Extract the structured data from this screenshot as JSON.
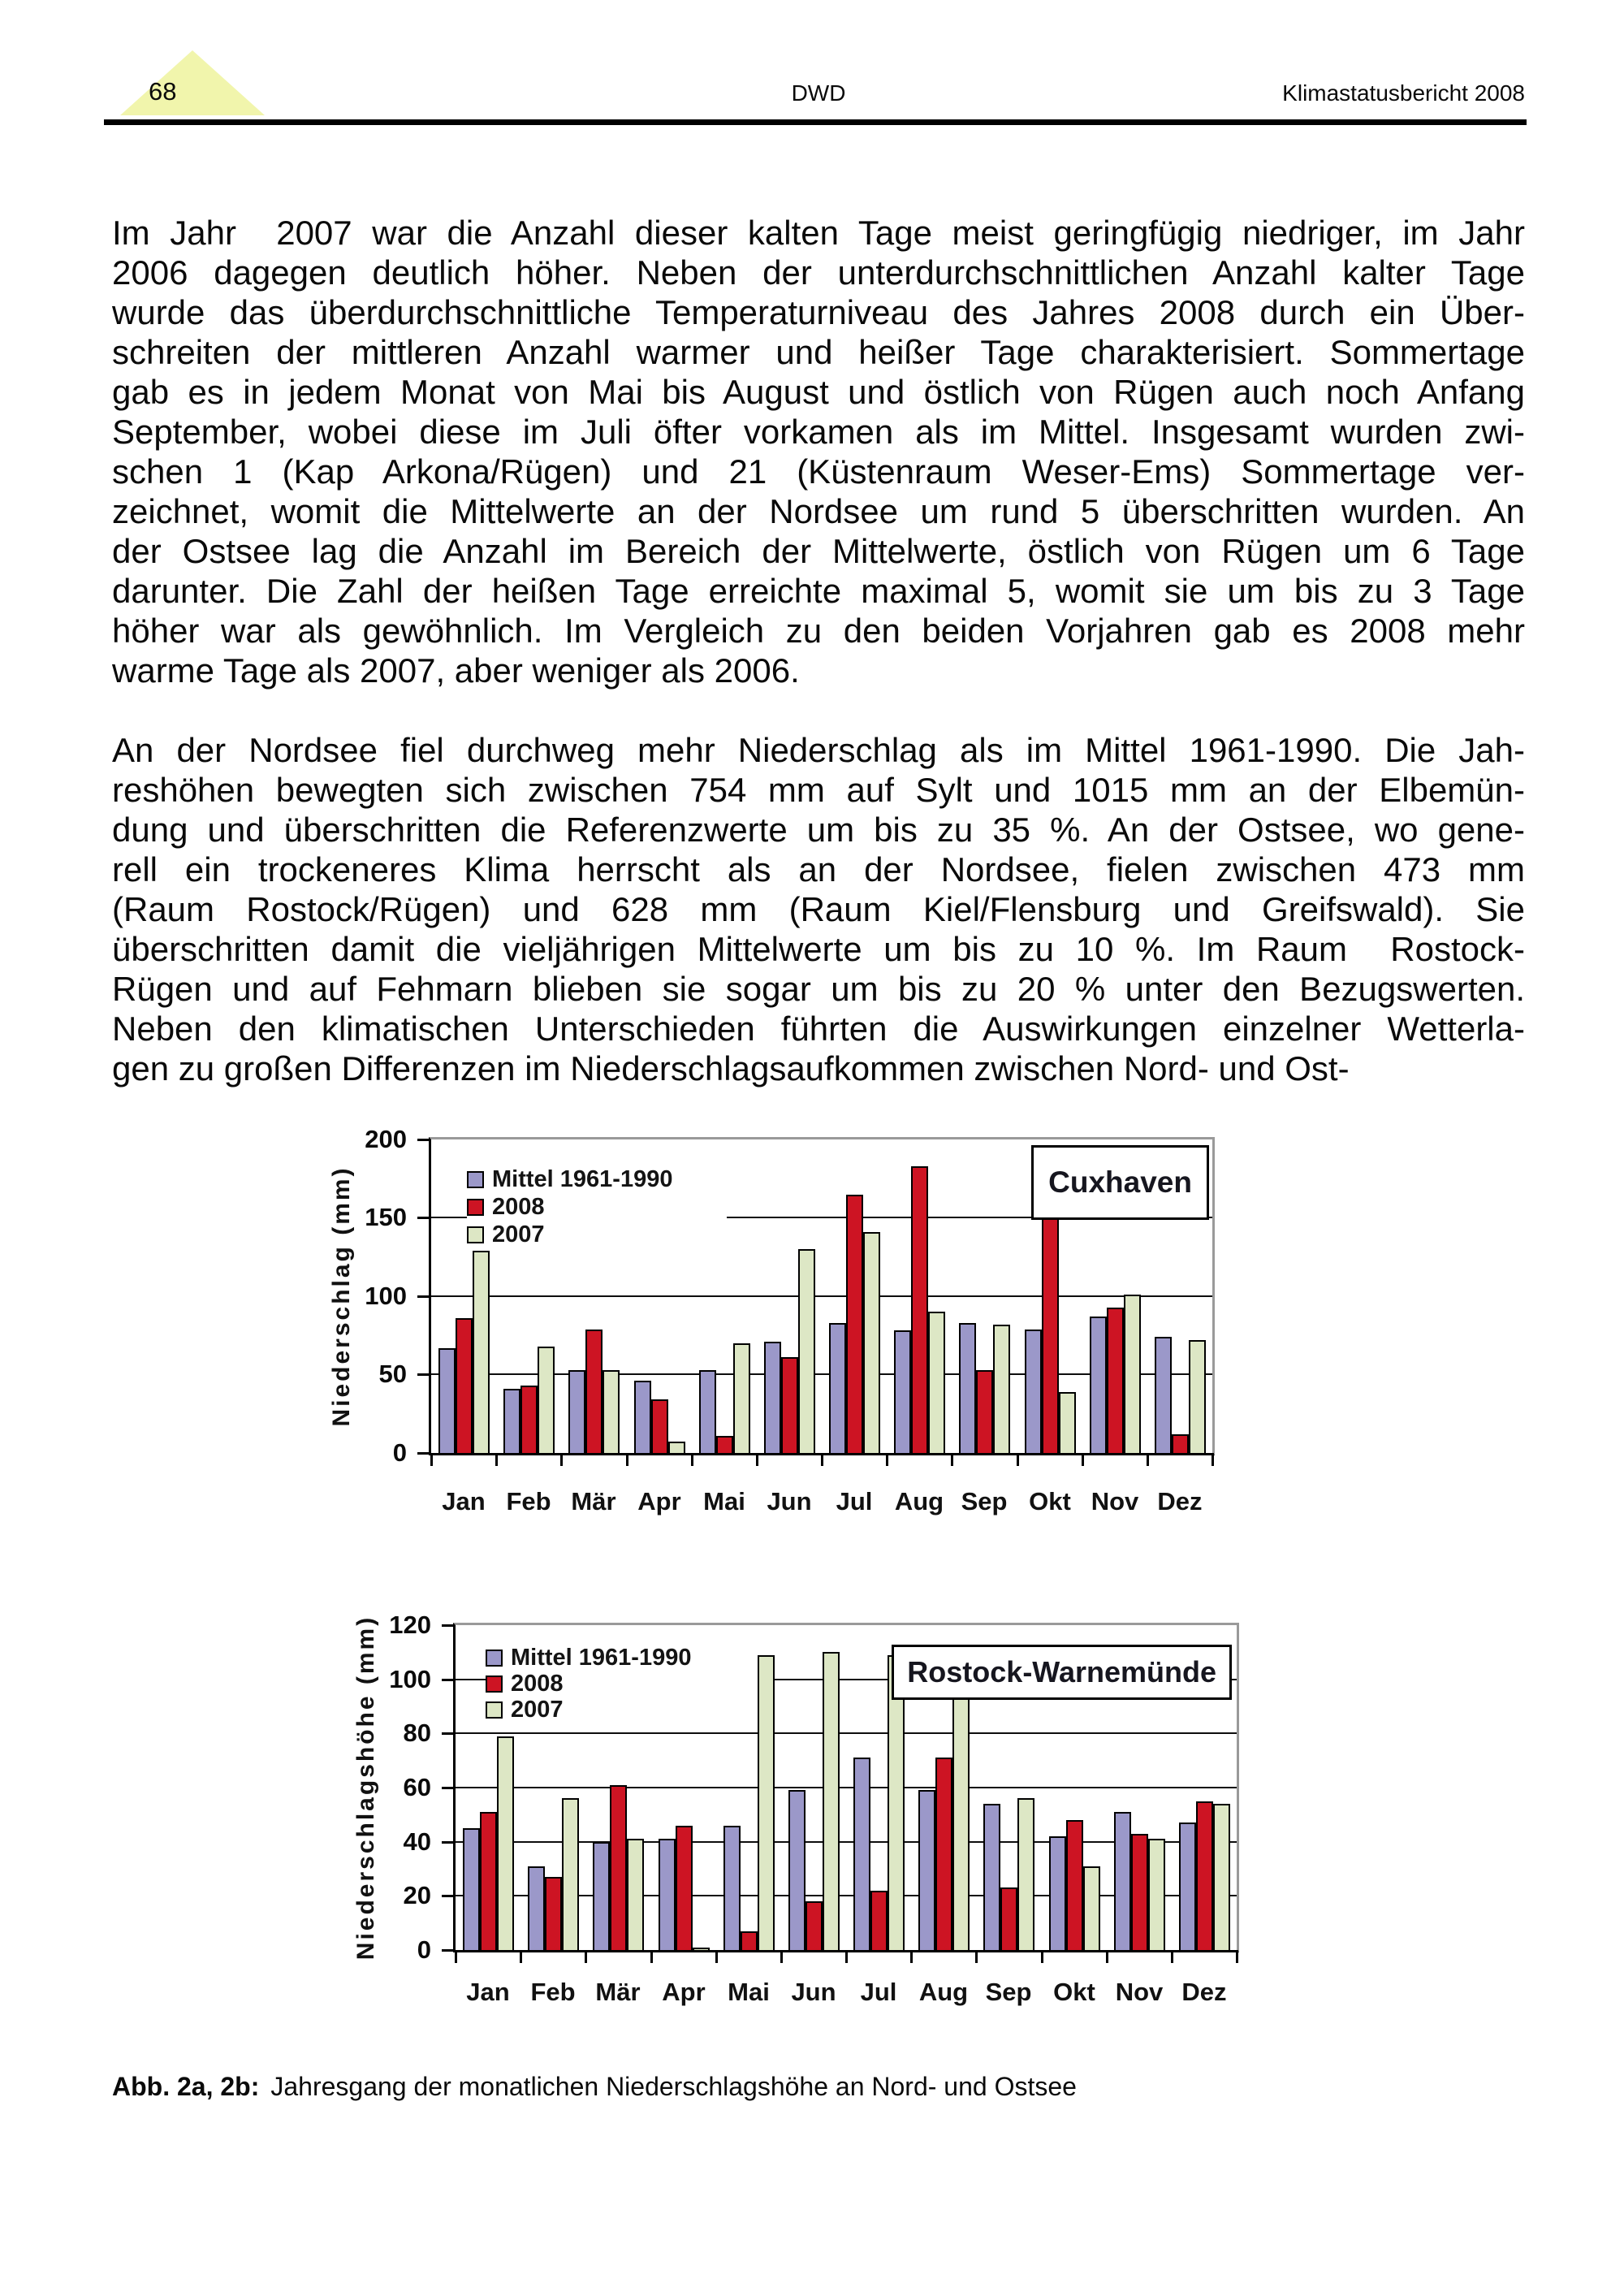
{
  "header": {
    "page_number": "68",
    "center": "DWD",
    "right": "Klimastatusbericht 2008"
  },
  "paragraphs": [
    {
      "lines": [
        "Im Jahr  2007 war die Anzahl dieser kalten Tage meist geringfügig niedriger, im Jahr",
        "2006 dagegen deutlich höher. Neben der unterdurchschnittlichen Anzahl kalter Tage",
        "wurde das überdurchschnittliche Temperaturniveau des Jahres 2008 durch ein Über-",
        "schreiten der mittleren Anzahl warmer und heißer Tage charakterisiert. Sommertage",
        "gab es in jedem Monat von Mai bis August und östlich von Rügen auch noch Anfang",
        "September, wobei diese im Juli öfter vorkamen als im Mittel. Insgesamt wurden zwi-",
        "schen 1 (Kap Arkona/Rügen) und 21 (Küstenraum Weser-Ems) Sommertage ver-",
        "zeichnet, womit die Mittelwerte an der Nordsee um rund 5 überschritten wurden. An",
        "der Ostsee lag die Anzahl im Bereich der Mittelwerte, östlich von Rügen um 6 Tage",
        "darunter. Die Zahl der heißen Tage erreichte maximal 5, womit sie um bis zu 3 Tage",
        "höher war als gewöhnlich. Im Vergleich zu den beiden Vorjahren gab es 2008 mehr",
        "warme Tage als 2007, aber weniger als 2006."
      ]
    },
    {
      "lines": [
        "An der Nordsee fiel durchweg mehr Niederschlag als im Mittel 1961-1990. Die Jah-",
        "reshöhen bewegten sich zwischen 754 mm auf Sylt und 1015 mm an der Elbemün-",
        "dung und überschritten die Referenzwerte um bis zu 35 %. An der Ostsee, wo gene-",
        "rell ein trockeneres Klima herrscht als an der Nordsee, fielen zwischen 473 mm",
        "(Raum Rostock/Rügen) und 628 mm (Raum Kiel/Flensburg und Greifswald). Sie",
        "überschritten damit die vieljährigen Mittelwerte um bis zu 10 %. Im Raum  Rostock-",
        "Rügen und auf Fehmarn blieben sie sogar um bis zu 20 % unter den Bezugswerten.",
        "Neben den klimatischen Unterschieden führten die Auswirkungen einzelner Wetterla-",
        "gen zu großen Differenzen im Niederschlagsaufkommen zwischen Nord- und Ost-"
      ]
    }
  ],
  "caption": {
    "label": "Abb. 2a, 2b:",
    "text": "Jahresgang der monatlichen Niederschlagshöhe an Nord- und Ostsee"
  },
  "colors": {
    "triangle": "#f1f5ac",
    "mittel": "#9b98c9",
    "y2008": "#cd1423",
    "y2007": "#dde7c5"
  },
  "chart_data": [
    {
      "type": "bar",
      "title": "Cuxhaven",
      "ylabel": "Niederschlag (mm)",
      "ylim": [
        0,
        200
      ],
      "yticks": [
        0,
        50,
        100,
        150,
        200
      ],
      "grid": true,
      "legend_position": "top-left-inside",
      "categories": [
        "Jan",
        "Feb",
        "Mär",
        "Apr",
        "Mai",
        "Jun",
        "Jul",
        "Aug",
        "Sep",
        "Okt",
        "Nov",
        "Dez"
      ],
      "series": [
        {
          "name": "Mittel 1961-1990",
          "color": "#9b98c9",
          "values": [
            67,
            41,
            53,
            46,
            53,
            71,
            83,
            78,
            83,
            79,
            87,
            74
          ]
        },
        {
          "name": "2008",
          "color": "#cd1423",
          "values": [
            86,
            43,
            79,
            34,
            11,
            61,
            165,
            183,
            53,
            196,
            93,
            12
          ]
        },
        {
          "name": "2007",
          "color": "#dde7c5",
          "values": [
            129,
            68,
            53,
            7,
            70,
            130,
            141,
            90,
            82,
            39,
            101,
            72
          ]
        }
      ]
    },
    {
      "type": "bar",
      "title": "Rostock-Warnemünde",
      "ylabel": "Niederschlagshöhe (mm)",
      "ylim": [
        0,
        120
      ],
      "yticks": [
        0,
        20,
        40,
        60,
        80,
        100,
        120
      ],
      "grid": true,
      "legend_position": "top-left-inside",
      "categories": [
        "Jan",
        "Feb",
        "Mär",
        "Apr",
        "Mai",
        "Jun",
        "Jul",
        "Aug",
        "Sep",
        "Okt",
        "Nov",
        "Dez"
      ],
      "series": [
        {
          "name": "Mittel 1961-1990",
          "color": "#9b98c9",
          "values": [
            45,
            31,
            40,
            41,
            46,
            59,
            71,
            59,
            54,
            42,
            51,
            47
          ]
        },
        {
          "name": "2008",
          "color": "#cd1423",
          "values": [
            51,
            27,
            61,
            46,
            7,
            18,
            22,
            71,
            23,
            48,
            43,
            55
          ]
        },
        {
          "name": "2007",
          "color": "#dde7c5",
          "values": [
            79,
            56,
            41,
            1,
            109,
            110,
            109,
            96,
            56,
            31,
            41,
            54
          ]
        }
      ]
    }
  ]
}
